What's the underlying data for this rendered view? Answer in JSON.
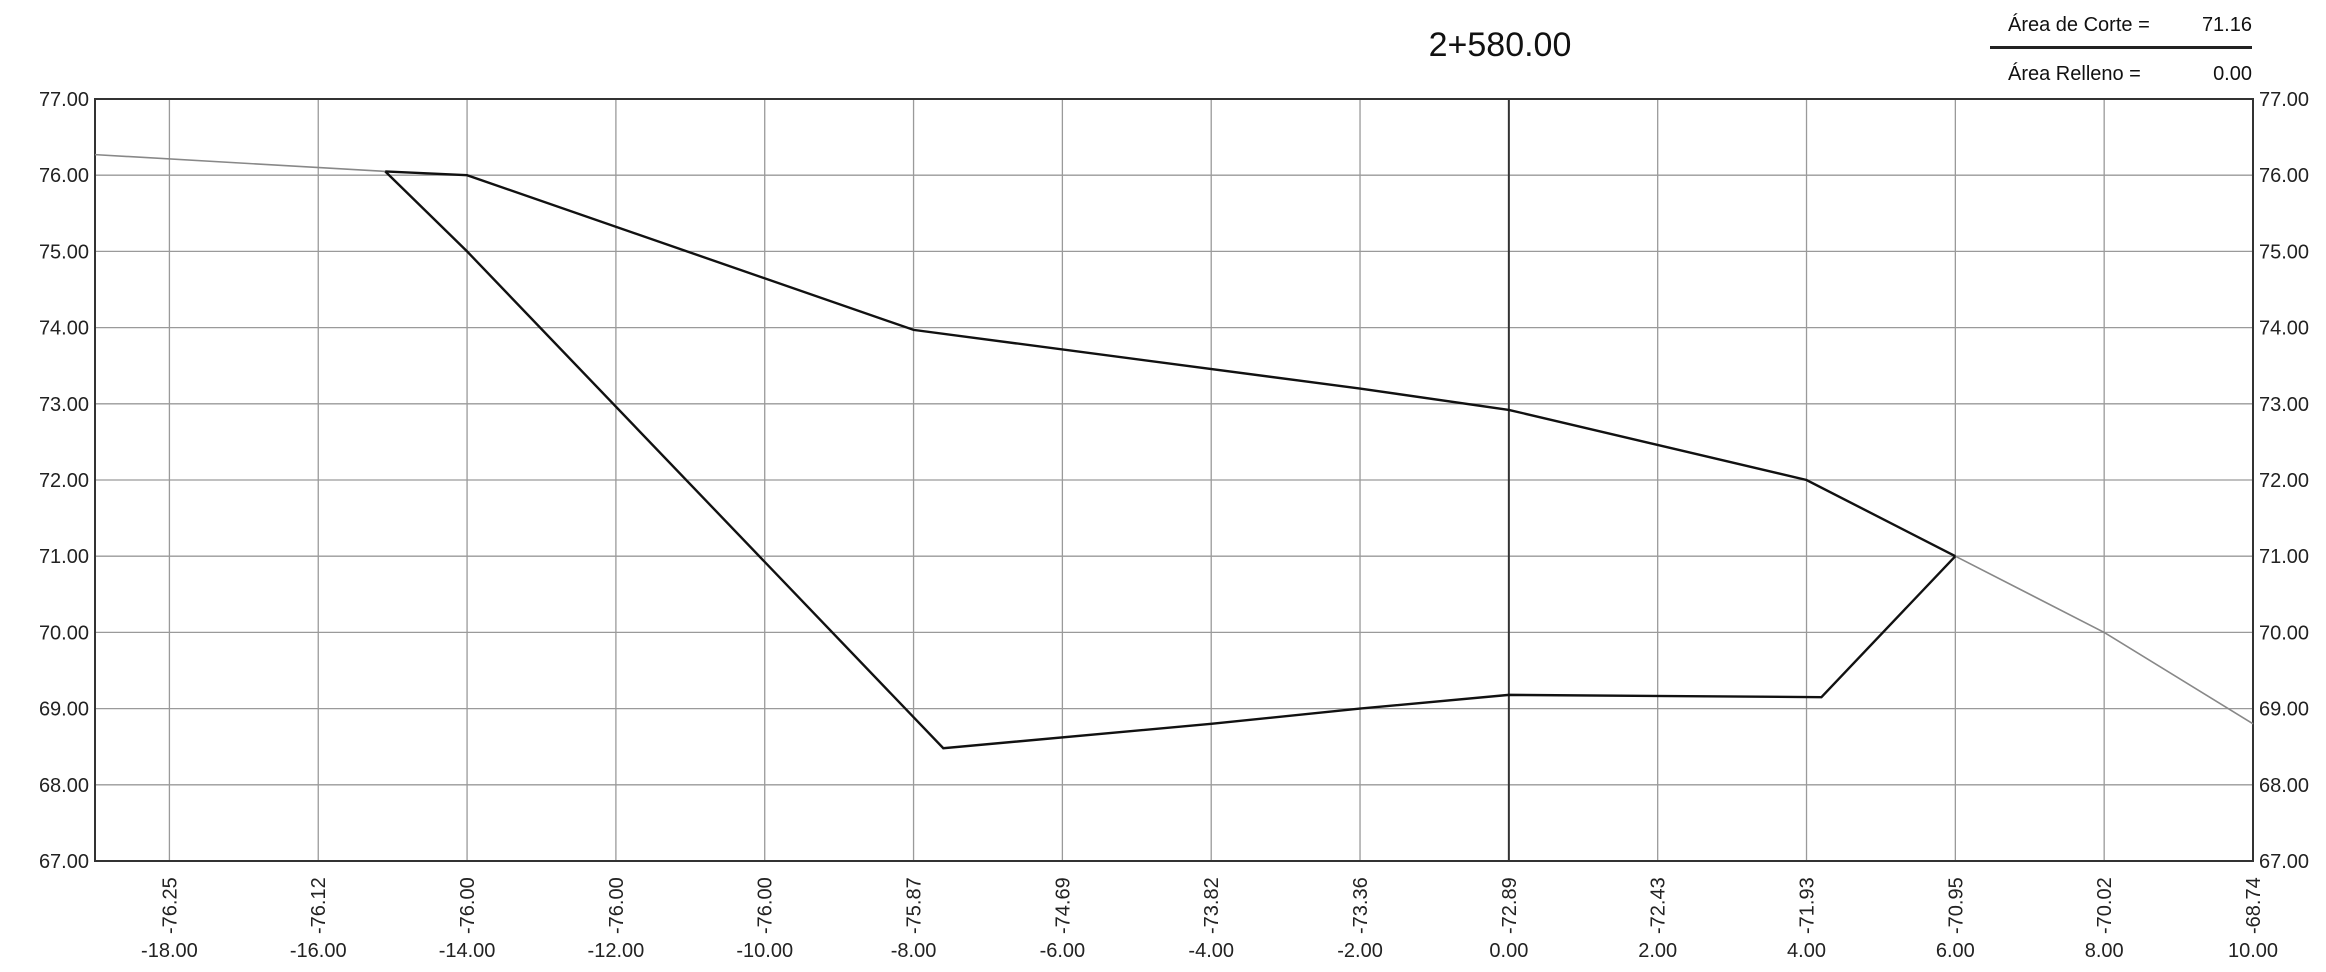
{
  "header": {
    "station": "2+580.00",
    "cut_label": "Área de Corte =",
    "cut_value": "71.16",
    "fill_label": "Área Relleno =",
    "fill_value": "0.00"
  },
  "chart_data": {
    "type": "line",
    "title": "2+580.00",
    "xlim": [
      -19,
      10
    ],
    "ylim": [
      67,
      77
    ],
    "grid": true,
    "x_ticks": [
      "-18.00",
      "-16.00",
      "-14.00",
      "-12.00",
      "-10.00",
      "-8.00",
      "-6.00",
      "-4.00",
      "-2.00",
      "0.00",
      "2.00",
      "4.00",
      "6.00",
      "8.00",
      "10.00"
    ],
    "y_ticks": [
      "67.00",
      "68.00",
      "69.00",
      "70.00",
      "71.00",
      "72.00",
      "73.00",
      "74.00",
      "75.00",
      "76.00",
      "77.00"
    ],
    "elevation_labels": [
      {
        "x": -18,
        "label": "-76.25"
      },
      {
        "x": -16,
        "label": "-76.12"
      },
      {
        "x": -14,
        "label": "-76.00"
      },
      {
        "x": -12,
        "label": "-76.00"
      },
      {
        "x": -10,
        "label": "-76.00"
      },
      {
        "x": -8,
        "label": "-75.87"
      },
      {
        "x": -6,
        "label": "-74.69"
      },
      {
        "x": -4,
        "label": "-73.82"
      },
      {
        "x": -2,
        "label": "-73.36"
      },
      {
        "x": 0,
        "label": "-72.89"
      },
      {
        "x": 2,
        "label": "-72.43"
      },
      {
        "x": 4,
        "label": "-71.93"
      },
      {
        "x": 6,
        "label": "-70.95"
      },
      {
        "x": 8,
        "label": "-70.02"
      },
      {
        "x": 10,
        "label": "-68.74"
      }
    ],
    "series": [
      {
        "role": "terrain",
        "x": [
          -19,
          -15.1,
          -14,
          -8,
          -2,
          0,
          4,
          6,
          8,
          10
        ],
        "y": [
          76.27,
          76.05,
          76.0,
          73.97,
          73.2,
          72.92,
          72.0,
          71.0,
          70.0,
          68.8
        ]
      },
      {
        "role": "section",
        "x": [
          -15.1,
          -14,
          -7.6,
          -4,
          -2,
          0,
          4.2,
          6
        ],
        "y": [
          76.05,
          75.0,
          68.48,
          68.8,
          69.0,
          69.18,
          69.15,
          71.0
        ]
      }
    ]
  }
}
